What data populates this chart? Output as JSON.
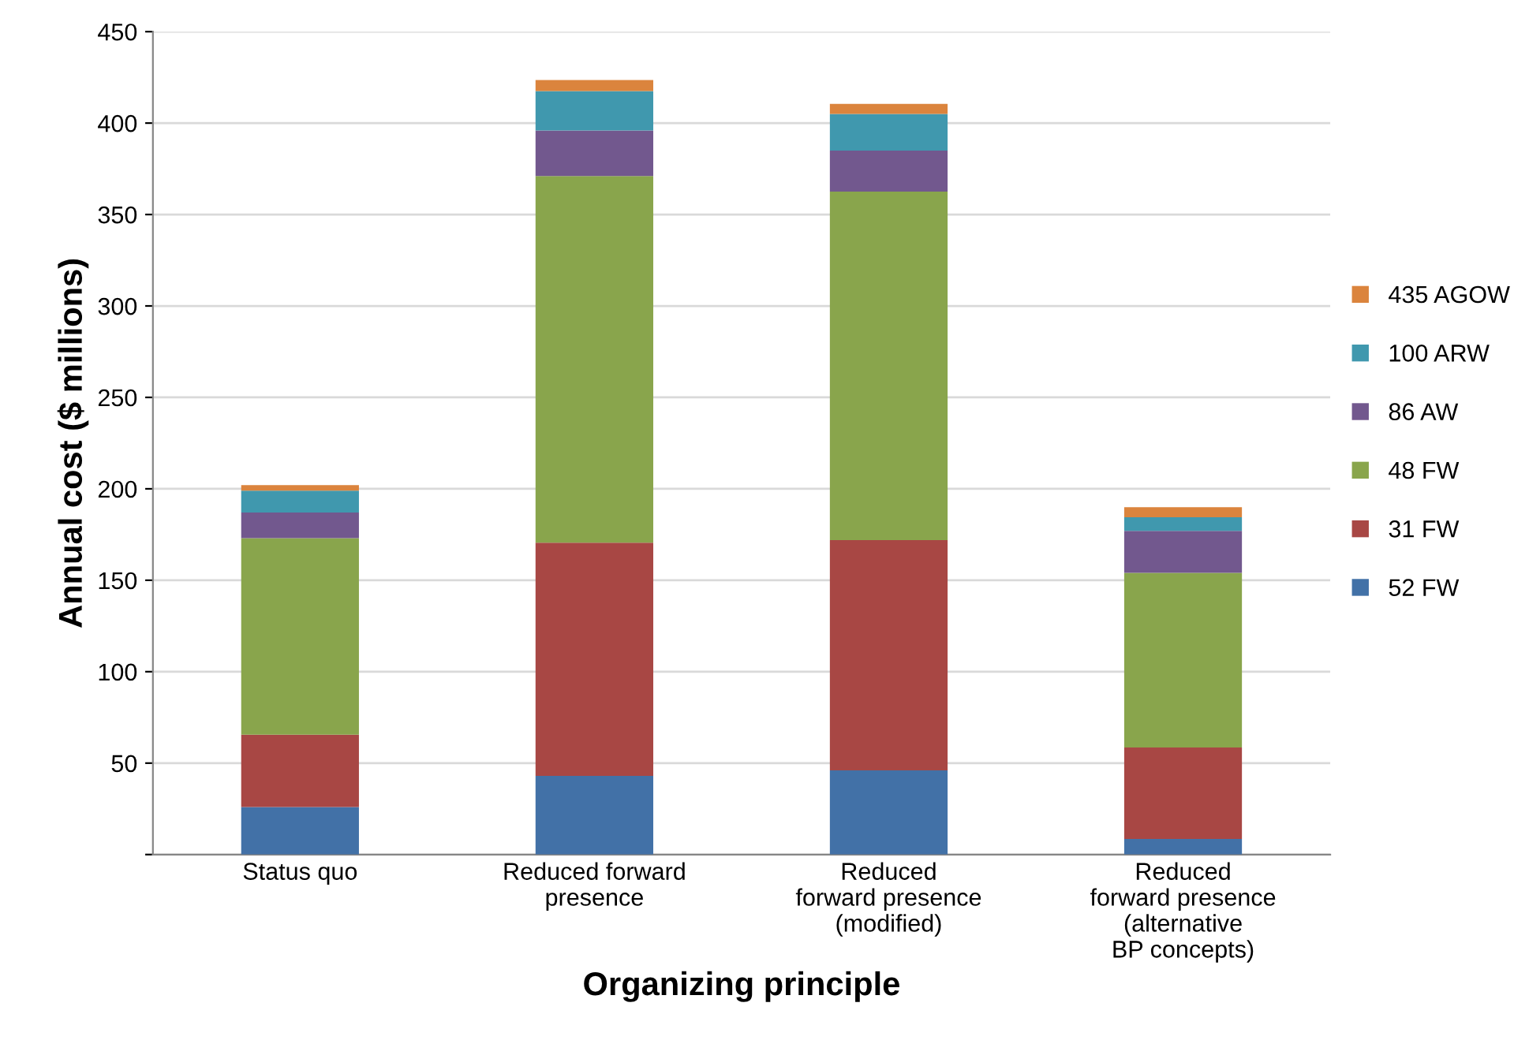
{
  "chart_data": {
    "type": "bar",
    "stacked": true,
    "xlabel": "Organizing principle",
    "ylabel": "Annual cost ($ millions)",
    "categories": [
      "Status quo",
      "Reduced forward\npresence",
      "Reduced\nforward presence\n(modified)",
      "Reduced\nforward presence\n(alternative\nBP concepts)"
    ],
    "series": [
      {
        "name": "52 FW",
        "color": "#4271a7",
        "values": [
          26,
          43,
          46,
          8.5
        ]
      },
      {
        "name": "31 FW",
        "color": "#a84744",
        "values": [
          39.5,
          127.5,
          126,
          50
        ]
      },
      {
        "name": "48 FW",
        "color": "#89a54c",
        "values": [
          107.5,
          200.5,
          190.5,
          95.5
        ]
      },
      {
        "name": "86 AW",
        "color": "#72588e",
        "values": [
          14,
          25,
          22.5,
          23
        ]
      },
      {
        "name": "100 ARW",
        "color": "#4098ae",
        "values": [
          12,
          21.5,
          20,
          7.5
        ]
      },
      {
        "name": "435 AGOW",
        "color": "#db843d",
        "values": [
          3,
          6,
          5.5,
          5.5
        ]
      }
    ],
    "ylim": [
      0,
      450
    ],
    "yticks": [
      {
        "value": 0,
        "label": null
      },
      50,
      100,
      150,
      200,
      250,
      300,
      350,
      400,
      450
    ],
    "grid": "y",
    "legend": "right"
  }
}
